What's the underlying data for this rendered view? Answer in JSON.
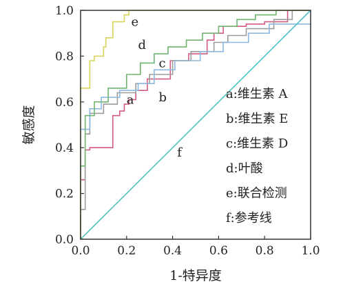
{
  "chart_data": {
    "type": "line",
    "xlabel": "1-特异度",
    "ylabel": "敏感度",
    "xlim": [
      0,
      1
    ],
    "ylim": [
      0,
      1
    ],
    "xticks": [
      "0.0",
      "0.2",
      "0.4",
      "0.6",
      "0.8",
      "1.0"
    ],
    "yticks": [
      "0.0",
      "0.2",
      "0.4",
      "0.6",
      "0.8",
      "1.0"
    ],
    "grid": false,
    "legend_position": "bottom-right",
    "legend": [
      {
        "key": "a",
        "text": "a:维生素 A"
      },
      {
        "key": "b",
        "text": "b:维生素 E"
      },
      {
        "key": "c",
        "text": "c:维生素 D"
      },
      {
        "key": "d",
        "text": "d:叶酸"
      },
      {
        "key": "e",
        "text": "e:联合检测"
      },
      {
        "key": "f",
        "text": "f:参考线"
      }
    ],
    "series": [
      {
        "key": "a",
        "color": "#d25b7e",
        "label_pos": [
          0.2,
          0.61
        ],
        "x": [
          0,
          0,
          0.02,
          0.02,
          0.04,
          0.04,
          0.14,
          0.14,
          0.17,
          0.17,
          0.19,
          0.19,
          0.21,
          0.21,
          0.24,
          0.24,
          0.29,
          0.29,
          0.39,
          0.39,
          0.47,
          0.47,
          0.55,
          0.55,
          0.58,
          0.58,
          0.62,
          0.62,
          0.72,
          0.72,
          0.8,
          0.8,
          0.9,
          0.9,
          1.0
        ],
        "y": [
          0,
          0.26,
          0.26,
          0.39,
          0.39,
          0.4,
          0.4,
          0.54,
          0.54,
          0.56,
          0.56,
          0.59,
          0.59,
          0.61,
          0.61,
          0.65,
          0.65,
          0.7,
          0.7,
          0.78,
          0.78,
          0.81,
          0.81,
          0.87,
          0.87,
          0.9,
          0.9,
          0.93,
          0.93,
          0.94,
          0.94,
          0.95,
          0.95,
          1.0,
          1.0
        ]
      },
      {
        "key": "b",
        "color": "#9b9b9b",
        "label_pos": [
          0.34,
          0.62
        ],
        "x": [
          0,
          0,
          0.02,
          0.02,
          0.04,
          0.04,
          0.1,
          0.1,
          0.16,
          0.16,
          0.24,
          0.24,
          0.3,
          0.3,
          0.4,
          0.4,
          0.48,
          0.48,
          0.58,
          0.58,
          0.64,
          0.64,
          0.72,
          0.72,
          0.84,
          0.84,
          0.92,
          0.92,
          1.0
        ],
        "y": [
          0,
          0.13,
          0.13,
          0.46,
          0.46,
          0.55,
          0.55,
          0.59,
          0.59,
          0.64,
          0.64,
          0.68,
          0.68,
          0.72,
          0.72,
          0.78,
          0.78,
          0.82,
          0.82,
          0.86,
          0.86,
          0.89,
          0.89,
          0.92,
          0.92,
          0.96,
          0.96,
          1.0,
          1.0
        ]
      },
      {
        "key": "c",
        "color": "#8ab8e0",
        "label_pos": [
          0.34,
          0.77
        ],
        "x": [
          0,
          0,
          0.04,
          0.04,
          0.09,
          0.09,
          0.17,
          0.17,
          0.25,
          0.25,
          0.32,
          0.32,
          0.41,
          0.41,
          0.52,
          0.52,
          0.62,
          0.62,
          0.73,
          0.73,
          0.82,
          0.82,
          1.0
        ],
        "y": [
          0,
          0.48,
          0.48,
          0.57,
          0.57,
          0.62,
          0.62,
          0.65,
          0.65,
          0.68,
          0.68,
          0.74,
          0.74,
          0.78,
          0.78,
          0.82,
          0.82,
          0.86,
          0.86,
          0.9,
          0.9,
          0.94,
          0.94
        ]
      },
      {
        "key": "d",
        "color": "#6fb56f",
        "label_pos": [
          0.25,
          0.85
        ],
        "x": [
          0,
          0,
          0.02,
          0.02,
          0.06,
          0.06,
          0.12,
          0.12,
          0.2,
          0.2,
          0.26,
          0.26,
          0.32,
          0.32,
          0.38,
          0.38,
          0.46,
          0.46,
          0.53,
          0.53,
          0.6,
          0.6,
          0.68,
          0.68,
          0.76,
          0.76,
          0.85,
          0.85,
          1.0
        ],
        "y": [
          0,
          0.32,
          0.32,
          0.54,
          0.54,
          0.6,
          0.6,
          0.66,
          0.66,
          0.72,
          0.72,
          0.77,
          0.77,
          0.81,
          0.81,
          0.84,
          0.84,
          0.87,
          0.87,
          0.9,
          0.9,
          0.93,
          0.93,
          0.96,
          0.96,
          0.98,
          0.98,
          1.0,
          1.0
        ]
      },
      {
        "key": "e",
        "color": "#d8d25a",
        "label_pos": [
          0.22,
          0.95
        ],
        "x": [
          0,
          0,
          0.04,
          0.04,
          0.06,
          0.06,
          0.1,
          0.1,
          0.11,
          0.11,
          0.14,
          0.14,
          0.19,
          0.19,
          0.21,
          0.21,
          0.32,
          0.32,
          1.0
        ],
        "y": [
          0,
          0.66,
          0.66,
          0.78,
          0.78,
          0.8,
          0.8,
          0.84,
          0.84,
          0.88,
          0.88,
          0.95,
          0.95,
          0.98,
          0.98,
          1.0,
          1.0,
          1.0,
          1.0
        ]
      },
      {
        "key": "f",
        "color": "#4fc2c0",
        "label_pos": [
          0.42,
          0.38
        ],
        "x": [
          0,
          1.0
        ],
        "y": [
          0,
          1.0
        ]
      }
    ]
  }
}
